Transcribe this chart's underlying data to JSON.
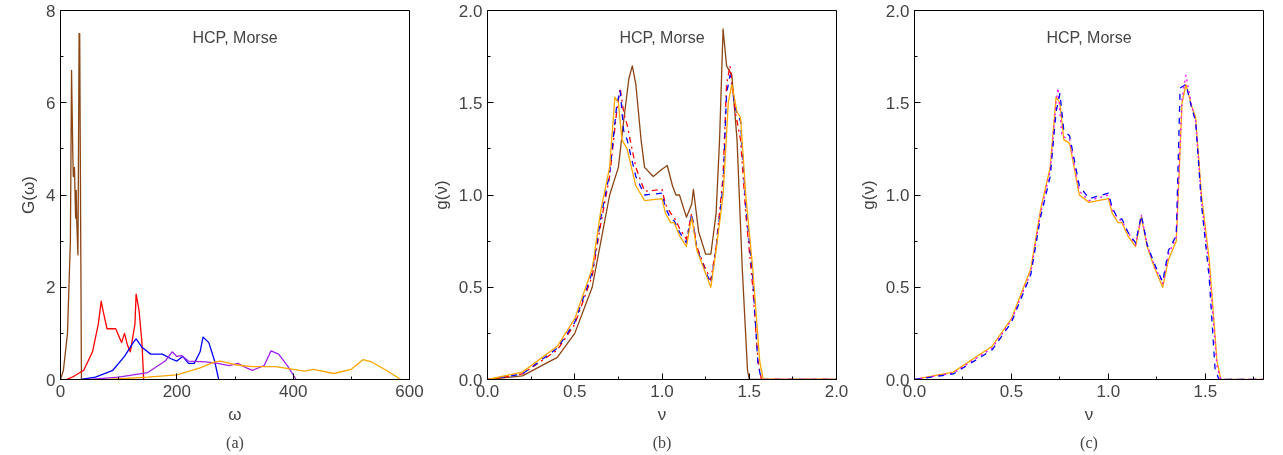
{
  "chart_data": [
    {
      "type": "line",
      "xlabel": "ω",
      "ylabel": "G(ω)",
      "annotations": [
        "HCP, Morse",
        "(a)"
      ],
      "xlim": [
        0,
        600
      ],
      "ylim": [
        0,
        8
      ],
      "xticks": [
        0,
        {
          "value": 100,
          "label": null
        },
        200,
        {
          "value": 300,
          "label": null
        },
        400,
        {
          "value": 500,
          "label": null
        },
        600
      ],
      "yticks": [
        0,
        {
          "value": 1,
          "label": null
        },
        2,
        {
          "value": 3,
          "label": null
        },
        4,
        {
          "value": 5,
          "label": null
        },
        6,
        {
          "value": 7,
          "label": null
        },
        8
      ],
      "grid": false,
      "line_style": "solid",
      "series": [
        {
          "color": "#8b4513",
          "x": [
            0,
            5,
            12,
            17,
            19,
            21,
            22,
            24,
            26,
            27,
            28,
            30,
            32,
            33,
            36
          ],
          "values": [
            0,
            0.2,
            1,
            3,
            6.7,
            5,
            4.4,
            4.6,
            3.5,
            4.1,
            3.4,
            2.7,
            7.5,
            7.5,
            0
          ]
        },
        {
          "color": "#ff0000",
          "x": [
            10,
            20,
            40,
            55,
            65,
            70,
            73,
            80,
            95,
            100,
            105,
            110,
            115,
            120,
            128,
            130,
            135,
            140,
            143
          ],
          "values": [
            0,
            0.05,
            0.2,
            0.6,
            1.2,
            1.7,
            1.5,
            1.1,
            1.1,
            0.95,
            0.8,
            1.0,
            0.75,
            0.6,
            1.2,
            1.85,
            1.5,
            0.8,
            0
          ]
        },
        {
          "color": "#0000ff",
          "x": [
            35,
            60,
            90,
            110,
            125,
            130,
            140,
            155,
            175,
            190,
            200,
            210,
            220,
            230,
            240,
            245,
            255,
            265,
            272
          ],
          "values": [
            0,
            0.05,
            0.2,
            0.5,
            0.8,
            0.88,
            0.7,
            0.55,
            0.55,
            0.45,
            0.4,
            0.5,
            0.35,
            0.35,
            0.6,
            0.92,
            0.8,
            0.4,
            0
          ]
        },
        {
          "color": "#a020f0",
          "x": [
            50,
            100,
            150,
            180,
            192,
            200,
            208,
            220,
            250,
            270,
            290,
            305,
            320,
            330,
            350,
            362,
            375,
            390,
            405
          ],
          "values": [
            0,
            0.05,
            0.15,
            0.4,
            0.6,
            0.5,
            0.52,
            0.4,
            0.38,
            0.35,
            0.3,
            0.35,
            0.25,
            0.2,
            0.3,
            0.62,
            0.55,
            0.3,
            0
          ]
        },
        {
          "color": "#ffa500",
          "x": [
            80,
            150,
            200,
            240,
            265,
            275,
            300,
            330,
            370,
            400,
            420,
            435,
            470,
            500,
            520,
            535,
            560,
            585
          ],
          "values": [
            0,
            0.05,
            0.1,
            0.25,
            0.38,
            0.4,
            0.32,
            0.28,
            0.28,
            0.22,
            0.18,
            0.22,
            0.13,
            0.22,
            0.43,
            0.38,
            0.2,
            0
          ]
        }
      ]
    },
    {
      "type": "line",
      "xlabel": "ν",
      "ylabel": "g(ν)",
      "annotations": [
        "HCP, Morse",
        "(b)"
      ],
      "xlim": [
        0,
        2
      ],
      "ylim": [
        0,
        2
      ],
      "xticks": [
        {
          "value": 0,
          "label": "0.0"
        },
        {
          "value": 0.25,
          "label": null
        },
        0.5,
        {
          "value": 0.75,
          "label": null
        },
        {
          "value": 1,
          "label": "1.0"
        },
        {
          "value": 1.25,
          "label": null
        },
        1.5,
        {
          "value": 1.75,
          "label": null
        },
        {
          "value": 2,
          "label": "2.0"
        }
      ],
      "yticks": [
        {
          "value": 0,
          "label": "0.0"
        },
        {
          "value": 0.25,
          "label": null
        },
        0.5,
        {
          "value": 0.75,
          "label": null
        },
        {
          "value": 1,
          "label": "1.0"
        },
        {
          "value": 1.25,
          "label": null
        },
        1.5,
        {
          "value": 1.75,
          "label": null
        },
        {
          "value": 2,
          "label": "2.0"
        }
      ],
      "grid": false,
      "series": [
        {
          "color": "#8b4513",
          "line_style": "solid",
          "x": [
            0,
            0.2,
            0.4,
            0.5,
            0.6,
            0.65,
            0.7,
            0.75,
            0.78,
            0.81,
            0.83,
            0.85,
            0.88,
            0.9,
            0.95,
            1.0,
            1.03,
            1.06,
            1.08,
            1.1,
            1.14,
            1.17,
            1.18,
            1.21,
            1.25,
            1.28,
            1.31,
            1.33,
            1.35,
            1.37,
            1.4,
            1.43,
            1.46,
            1.49,
            1.5,
            2.0
          ],
          "values": [
            0,
            0.02,
            0.12,
            0.25,
            0.5,
            0.75,
            1.0,
            1.15,
            1.4,
            1.63,
            1.7,
            1.6,
            1.3,
            1.15,
            1.1,
            1.14,
            1.16,
            1.05,
            1.0,
            1.0,
            0.88,
            0.95,
            1.03,
            0.8,
            0.68,
            0.68,
            0.9,
            1.3,
            1.9,
            1.7,
            1.65,
            1.3,
            0.6,
            0.05,
            0,
            0
          ]
        },
        {
          "color": "#ff0000",
          "line_style": "dashdot",
          "x": [
            0,
            0.2,
            0.4,
            0.5,
            0.6,
            0.65,
            0.7,
            0.74,
            0.76,
            0.78,
            0.8,
            0.85,
            0.9,
            1.0,
            1.02,
            1.05,
            1.07,
            1.1,
            1.14,
            1.17,
            1.2,
            1.24,
            1.28,
            1.31,
            1.35,
            1.37,
            1.39,
            1.42,
            1.45,
            1.48,
            1.52,
            1.55,
            1.57,
            2.0
          ],
          "values": [
            0,
            0.03,
            0.16,
            0.3,
            0.56,
            0.85,
            1.1,
            1.45,
            1.58,
            1.45,
            1.38,
            1.15,
            1.02,
            1.03,
            0.95,
            0.9,
            0.88,
            0.82,
            0.76,
            0.9,
            0.72,
            0.62,
            0.54,
            0.72,
            1.1,
            1.6,
            1.7,
            1.45,
            1.3,
            0.9,
            0.5,
            0.1,
            0,
            0
          ]
        },
        {
          "color": "#0000ff",
          "line_style": "dashed",
          "x": [
            0,
            0.2,
            0.4,
            0.5,
            0.6,
            0.65,
            0.7,
            0.74,
            0.76,
            0.78,
            0.8,
            0.85,
            0.9,
            1.0,
            1.02,
            1.05,
            1.07,
            1.1,
            1.14,
            1.17,
            1.2,
            1.24,
            1.28,
            1.31,
            1.35,
            1.37,
            1.39,
            1.42,
            1.45,
            1.48,
            1.52,
            1.55,
            1.57,
            2.0
          ],
          "values": [
            0,
            0.03,
            0.17,
            0.31,
            0.58,
            0.88,
            1.12,
            1.48,
            1.57,
            1.35,
            1.3,
            1.1,
            1.0,
            1.01,
            0.93,
            0.87,
            0.86,
            0.8,
            0.74,
            0.9,
            0.71,
            0.61,
            0.52,
            0.71,
            1.05,
            1.55,
            1.65,
            1.47,
            1.4,
            0.95,
            0.55,
            0.08,
            0,
            0
          ]
        },
        {
          "color": "#ffa500",
          "line_style": "solid",
          "x": [
            0,
            0.2,
            0.4,
            0.5,
            0.6,
            0.65,
            0.7,
            0.73,
            0.75,
            0.77,
            0.8,
            0.85,
            0.9,
            1.0,
            1.02,
            1.05,
            1.07,
            1.1,
            1.14,
            1.17,
            1.2,
            1.24,
            1.28,
            1.31,
            1.35,
            1.38,
            1.4,
            1.43,
            1.45,
            1.48,
            1.52,
            1.56,
            1.58,
            2.0
          ],
          "values": [
            0,
            0.04,
            0.18,
            0.33,
            0.6,
            0.92,
            1.15,
            1.53,
            1.5,
            1.3,
            1.25,
            1.05,
            0.97,
            0.98,
            0.9,
            0.85,
            0.85,
            0.78,
            0.72,
            0.88,
            0.7,
            0.6,
            0.5,
            0.7,
            1.0,
            1.5,
            1.6,
            1.45,
            1.42,
            1.0,
            0.6,
            0.1,
            0,
            0
          ]
        }
      ]
    },
    {
      "type": "line",
      "xlabel": "ν",
      "ylabel": "g(ν)",
      "annotations": [
        "HCP, Morse",
        "(c)"
      ],
      "xlim": [
        0,
        1.8
      ],
      "ylim": [
        0,
        2
      ],
      "xticks": [
        {
          "value": 0,
          "label": "0.0"
        },
        {
          "value": 0.25,
          "label": null
        },
        0.5,
        {
          "value": 0.75,
          "label": null
        },
        {
          "value": 1,
          "label": "1.0"
        },
        {
          "value": 1.25,
          "label": null
        },
        1.5,
        {
          "value": 1.75,
          "label": null
        }
      ],
      "yticks": [
        {
          "value": 0,
          "label": "0.0"
        },
        {
          "value": 0.25,
          "label": null
        },
        0.5,
        {
          "value": 0.75,
          "label": null
        },
        {
          "value": 1,
          "label": "1.0"
        },
        {
          "value": 1.25,
          "label": null
        },
        1.5,
        {
          "value": 1.75,
          "label": null
        },
        {
          "value": 2,
          "label": "2.0"
        }
      ],
      "grid": false,
      "series": [
        {
          "color": "#ffa500",
          "line_style": "solid",
          "x": [
            0,
            0.2,
            0.4,
            0.5,
            0.6,
            0.65,
            0.7,
            0.73,
            0.75,
            0.77,
            0.8,
            0.85,
            0.9,
            1.0,
            1.02,
            1.05,
            1.07,
            1.1,
            1.14,
            1.17,
            1.2,
            1.24,
            1.28,
            1.31,
            1.35,
            1.38,
            1.4,
            1.43,
            1.45,
            1.48,
            1.52,
            1.56,
            1.58,
            1.8
          ],
          "values": [
            0,
            0.04,
            0.18,
            0.33,
            0.6,
            0.92,
            1.15,
            1.53,
            1.5,
            1.3,
            1.28,
            1.0,
            0.96,
            0.98,
            0.9,
            0.85,
            0.85,
            0.78,
            0.72,
            0.88,
            0.72,
            0.6,
            0.5,
            0.65,
            0.75,
            1.5,
            1.6,
            1.48,
            1.42,
            1.0,
            0.65,
            0.1,
            0,
            0
          ]
        },
        {
          "color": "#ff00ff",
          "line_style": "dotted",
          "x": [
            0,
            0.2,
            0.4,
            0.5,
            0.6,
            0.65,
            0.7,
            0.73,
            0.74,
            0.76,
            0.8,
            0.85,
            0.9,
            1.0,
            1.02,
            1.05,
            1.07,
            1.1,
            1.14,
            1.17,
            1.2,
            1.24,
            1.28,
            1.31,
            1.35,
            1.38,
            1.4,
            1.43,
            1.45,
            1.48,
            1.52,
            1.56,
            1.58,
            1.8
          ],
          "values": [
            0,
            0.035,
            0.17,
            0.32,
            0.58,
            0.9,
            1.13,
            1.5,
            1.58,
            1.32,
            1.3,
            1.02,
            0.97,
            1.0,
            0.92,
            0.87,
            0.86,
            0.8,
            0.73,
            0.89,
            0.73,
            0.61,
            0.52,
            0.68,
            0.77,
            1.52,
            1.65,
            1.48,
            1.4,
            0.97,
            0.6,
            0.07,
            0,
            0
          ]
        },
        {
          "color": "#0000ff",
          "line_style": "dashed",
          "x": [
            0,
            0.2,
            0.4,
            0.5,
            0.6,
            0.65,
            0.7,
            0.73,
            0.75,
            0.77,
            0.8,
            0.85,
            0.9,
            1.0,
            1.02,
            1.05,
            1.07,
            1.1,
            1.14,
            1.17,
            1.2,
            1.24,
            1.28,
            1.31,
            1.35,
            1.37,
            1.4,
            1.43,
            1.45,
            1.48,
            1.52,
            1.55,
            1.57,
            1.8
          ],
          "values": [
            0,
            0.03,
            0.16,
            0.31,
            0.57,
            0.88,
            1.1,
            1.45,
            1.55,
            1.35,
            1.32,
            1.05,
            0.98,
            1.01,
            0.93,
            0.87,
            0.87,
            0.8,
            0.74,
            0.89,
            0.73,
            0.62,
            0.53,
            0.7,
            0.78,
            1.58,
            1.6,
            1.47,
            1.4,
            0.95,
            0.55,
            0.06,
            0,
            0
          ]
        }
      ]
    }
  ]
}
